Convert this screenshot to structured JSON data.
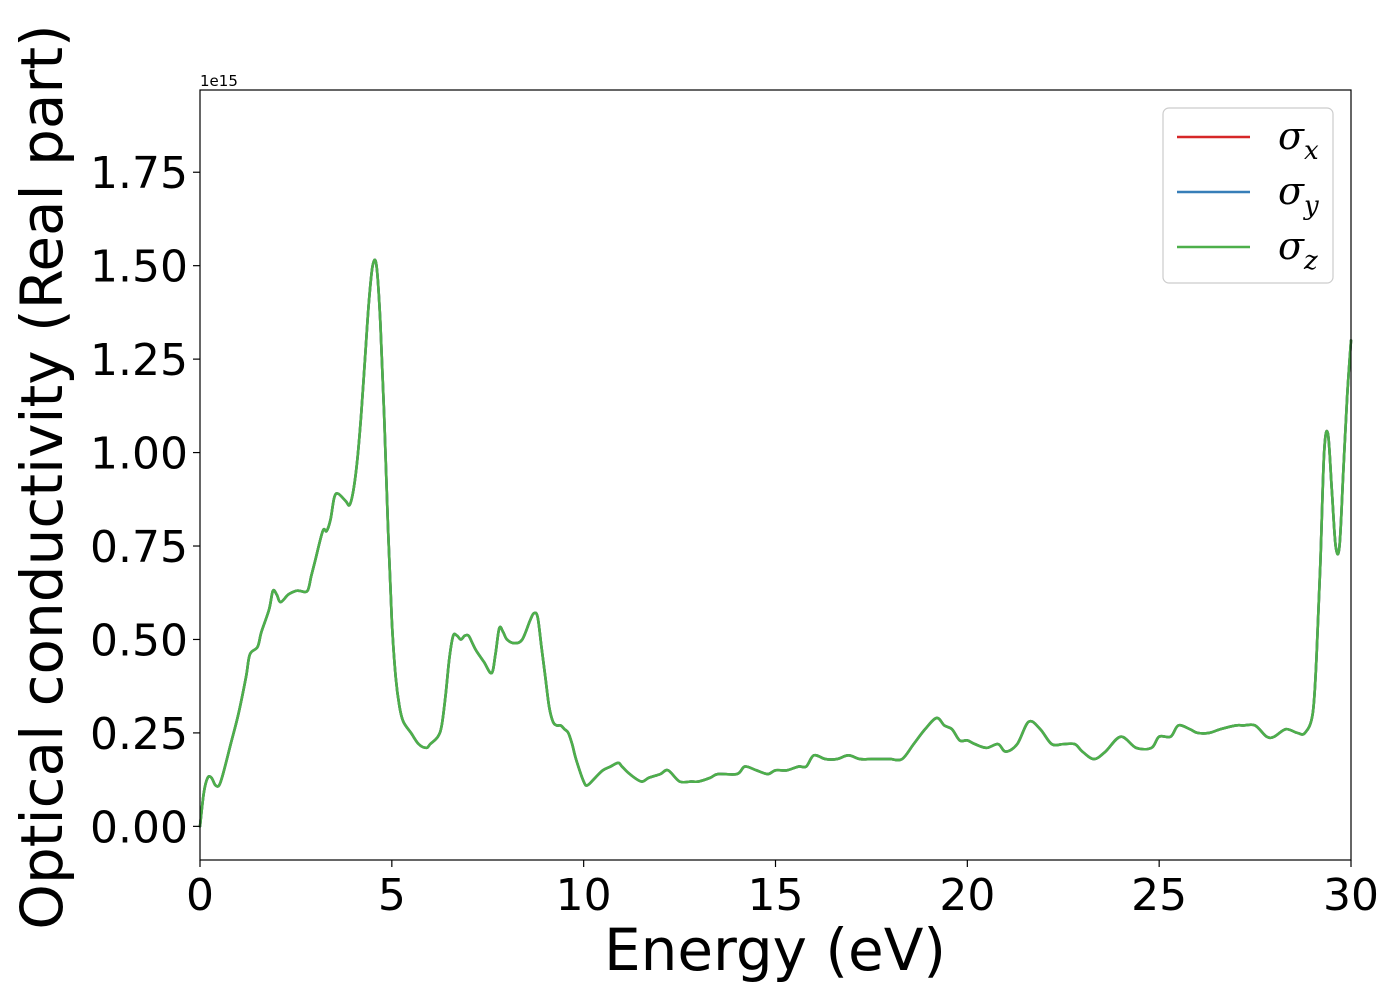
{
  "chart_data": {
    "type": "line",
    "xlabel": "Energy (eV)",
    "ylabel": "Optical conductivity (Real part)",
    "y_offset_label": "1e15",
    "xlim": [
      0,
      30
    ],
    "ylim": [
      -0.09,
      1.97
    ],
    "xticks": [
      0,
      5,
      10,
      15,
      20,
      25,
      30
    ],
    "xtick_labels": [
      "0",
      "5",
      "10",
      "15",
      "20",
      "25",
      "30"
    ],
    "yticks": [
      0.0,
      0.25,
      0.5,
      0.75,
      1.0,
      1.25,
      1.5,
      1.75
    ],
    "ytick_labels": [
      "0.00",
      "0.25",
      "0.50",
      "0.75",
      "1.00",
      "1.25",
      "1.50",
      "1.75"
    ],
    "grid": false,
    "legend_position": "top-right",
    "x": [
      0,
      0.1,
      0.2,
      0.3,
      0.4,
      0.5,
      0.6,
      0.8,
      1.0,
      1.2,
      1.3,
      1.5,
      1.6,
      1.8,
      1.9,
      2.0,
      2.1,
      2.3,
      2.5,
      2.6,
      2.8,
      2.9,
      3.0,
      3.2,
      3.3,
      3.4,
      3.5,
      3.6,
      3.8,
      3.9,
      4.0,
      4.1,
      4.2,
      4.3,
      4.4,
      4.5,
      4.6,
      4.7,
      4.8,
      4.9,
      5.0,
      5.1,
      5.2,
      5.3,
      5.5,
      5.7,
      5.9,
      6.0,
      6.2,
      6.3,
      6.4,
      6.5,
      6.6,
      6.7,
      6.8,
      6.9,
      7.0,
      7.1,
      7.2,
      7.4,
      7.6,
      7.7,
      7.8,
      7.9,
      8.0,
      8.2,
      8.4,
      8.6,
      8.7,
      8.8,
      8.9,
      9.0,
      9.1,
      9.2,
      9.3,
      9.4,
      9.5,
      9.6,
      9.7,
      9.8,
      10.0,
      10.1,
      10.3,
      10.5,
      10.7,
      10.9,
      11.0,
      11.2,
      11.5,
      11.7,
      12.0,
      12.2,
      12.5,
      12.8,
      13.0,
      13.3,
      13.5,
      14.0,
      14.2,
      14.5,
      14.8,
      15.0,
      15.3,
      15.6,
      15.8,
      16.0,
      16.3,
      16.6,
      16.9,
      17.2,
      17.5,
      17.8,
      18.0,
      18.3,
      18.6,
      18.9,
      19.2,
      19.4,
      19.6,
      19.8,
      20.0,
      20.2,
      20.5,
      20.8,
      21.0,
      21.3,
      21.6,
      21.9,
      22.2,
      22.5,
      22.8,
      23.0,
      23.3,
      23.6,
      24.0,
      24.4,
      24.8,
      25.0,
      25.3,
      25.5,
      25.8,
      26.0,
      26.3,
      26.6,
      27.0,
      27.2,
      27.5,
      27.8,
      28.0,
      28.3,
      28.6,
      28.8,
      29.0,
      29.1,
      29.2,
      29.3,
      29.4,
      29.5,
      29.6,
      29.7,
      29.8,
      29.9,
      30.0
    ],
    "series": [
      {
        "name": "σ",
        "subscript": "x",
        "color": "#d62728",
        "values": [
          0.0,
          0.09,
          0.13,
          0.13,
          0.11,
          0.11,
          0.14,
          0.22,
          0.3,
          0.4,
          0.46,
          0.48,
          0.52,
          0.58,
          0.63,
          0.62,
          0.6,
          0.62,
          0.63,
          0.63,
          0.63,
          0.67,
          0.71,
          0.79,
          0.79,
          0.82,
          0.88,
          0.89,
          0.87,
          0.86,
          0.9,
          0.98,
          1.1,
          1.25,
          1.4,
          1.5,
          1.5,
          1.35,
          1.1,
          0.8,
          0.55,
          0.4,
          0.32,
          0.28,
          0.25,
          0.22,
          0.21,
          0.22,
          0.24,
          0.27,
          0.35,
          0.45,
          0.51,
          0.51,
          0.5,
          0.51,
          0.51,
          0.49,
          0.47,
          0.44,
          0.41,
          0.46,
          0.53,
          0.52,
          0.5,
          0.49,
          0.5,
          0.55,
          0.57,
          0.56,
          0.48,
          0.4,
          0.32,
          0.28,
          0.27,
          0.27,
          0.26,
          0.25,
          0.22,
          0.18,
          0.12,
          0.11,
          0.13,
          0.15,
          0.16,
          0.17,
          0.16,
          0.14,
          0.12,
          0.13,
          0.14,
          0.15,
          0.12,
          0.12,
          0.12,
          0.13,
          0.14,
          0.14,
          0.16,
          0.15,
          0.14,
          0.15,
          0.15,
          0.16,
          0.16,
          0.19,
          0.18,
          0.18,
          0.19,
          0.18,
          0.18,
          0.18,
          0.18,
          0.18,
          0.22,
          0.26,
          0.29,
          0.27,
          0.26,
          0.23,
          0.23,
          0.22,
          0.21,
          0.22,
          0.2,
          0.22,
          0.28,
          0.26,
          0.22,
          0.22,
          0.22,
          0.2,
          0.18,
          0.2,
          0.24,
          0.21,
          0.21,
          0.24,
          0.24,
          0.27,
          0.26,
          0.25,
          0.25,
          0.26,
          0.27,
          0.27,
          0.27,
          0.24,
          0.24,
          0.26,
          0.25,
          0.25,
          0.3,
          0.45,
          0.7,
          1.0,
          1.05,
          0.9,
          0.75,
          0.75,
          0.95,
          1.15,
          1.3
        ]
      },
      {
        "name": "σ",
        "subscript": "y",
        "color": "#377eb8",
        "values": [
          0.0,
          0.09,
          0.13,
          0.13,
          0.11,
          0.11,
          0.14,
          0.22,
          0.3,
          0.4,
          0.46,
          0.48,
          0.52,
          0.58,
          0.63,
          0.62,
          0.6,
          0.62,
          0.63,
          0.63,
          0.63,
          0.67,
          0.71,
          0.79,
          0.79,
          0.82,
          0.88,
          0.89,
          0.87,
          0.86,
          0.9,
          0.98,
          1.1,
          1.25,
          1.4,
          1.5,
          1.5,
          1.35,
          1.1,
          0.8,
          0.55,
          0.4,
          0.32,
          0.28,
          0.25,
          0.22,
          0.21,
          0.22,
          0.24,
          0.27,
          0.35,
          0.45,
          0.51,
          0.51,
          0.5,
          0.51,
          0.51,
          0.49,
          0.47,
          0.44,
          0.41,
          0.46,
          0.53,
          0.52,
          0.5,
          0.49,
          0.5,
          0.55,
          0.57,
          0.56,
          0.48,
          0.4,
          0.32,
          0.28,
          0.27,
          0.27,
          0.26,
          0.25,
          0.22,
          0.18,
          0.12,
          0.11,
          0.13,
          0.15,
          0.16,
          0.17,
          0.16,
          0.14,
          0.12,
          0.13,
          0.14,
          0.15,
          0.12,
          0.12,
          0.12,
          0.13,
          0.14,
          0.14,
          0.16,
          0.15,
          0.14,
          0.15,
          0.15,
          0.16,
          0.16,
          0.19,
          0.18,
          0.18,
          0.19,
          0.18,
          0.18,
          0.18,
          0.18,
          0.18,
          0.22,
          0.26,
          0.29,
          0.27,
          0.26,
          0.23,
          0.23,
          0.22,
          0.21,
          0.22,
          0.2,
          0.22,
          0.28,
          0.26,
          0.22,
          0.22,
          0.22,
          0.2,
          0.18,
          0.2,
          0.24,
          0.21,
          0.21,
          0.24,
          0.24,
          0.27,
          0.26,
          0.25,
          0.25,
          0.26,
          0.27,
          0.27,
          0.27,
          0.24,
          0.24,
          0.26,
          0.25,
          0.25,
          0.3,
          0.45,
          0.7,
          1.0,
          1.05,
          0.9,
          0.75,
          0.75,
          0.95,
          1.15,
          1.3
        ]
      },
      {
        "name": "σ",
        "subscript": "z",
        "color": "#4daf4a",
        "values": [
          0.0,
          0.09,
          0.13,
          0.13,
          0.11,
          0.11,
          0.14,
          0.22,
          0.3,
          0.4,
          0.46,
          0.48,
          0.52,
          0.58,
          0.63,
          0.62,
          0.6,
          0.62,
          0.63,
          0.63,
          0.63,
          0.67,
          0.71,
          0.79,
          0.79,
          0.82,
          0.88,
          0.89,
          0.87,
          0.86,
          0.9,
          0.98,
          1.1,
          1.25,
          1.4,
          1.5,
          1.5,
          1.35,
          1.1,
          0.8,
          0.55,
          0.4,
          0.32,
          0.28,
          0.25,
          0.22,
          0.21,
          0.22,
          0.24,
          0.27,
          0.35,
          0.45,
          0.51,
          0.51,
          0.5,
          0.51,
          0.51,
          0.49,
          0.47,
          0.44,
          0.41,
          0.46,
          0.53,
          0.52,
          0.5,
          0.49,
          0.5,
          0.55,
          0.57,
          0.56,
          0.48,
          0.4,
          0.32,
          0.28,
          0.27,
          0.27,
          0.26,
          0.25,
          0.22,
          0.18,
          0.12,
          0.11,
          0.13,
          0.15,
          0.16,
          0.17,
          0.16,
          0.14,
          0.12,
          0.13,
          0.14,
          0.15,
          0.12,
          0.12,
          0.12,
          0.13,
          0.14,
          0.14,
          0.16,
          0.15,
          0.14,
          0.15,
          0.15,
          0.16,
          0.16,
          0.19,
          0.18,
          0.18,
          0.19,
          0.18,
          0.18,
          0.18,
          0.18,
          0.18,
          0.22,
          0.26,
          0.29,
          0.27,
          0.26,
          0.23,
          0.23,
          0.22,
          0.21,
          0.22,
          0.2,
          0.22,
          0.28,
          0.26,
          0.22,
          0.22,
          0.22,
          0.2,
          0.18,
          0.2,
          0.24,
          0.21,
          0.21,
          0.24,
          0.24,
          0.27,
          0.26,
          0.25,
          0.25,
          0.26,
          0.27,
          0.27,
          0.27,
          0.24,
          0.24,
          0.26,
          0.25,
          0.25,
          0.3,
          0.45,
          0.7,
          1.0,
          1.05,
          0.9,
          0.75,
          0.75,
          0.95,
          1.15,
          1.3
        ]
      }
    ]
  }
}
